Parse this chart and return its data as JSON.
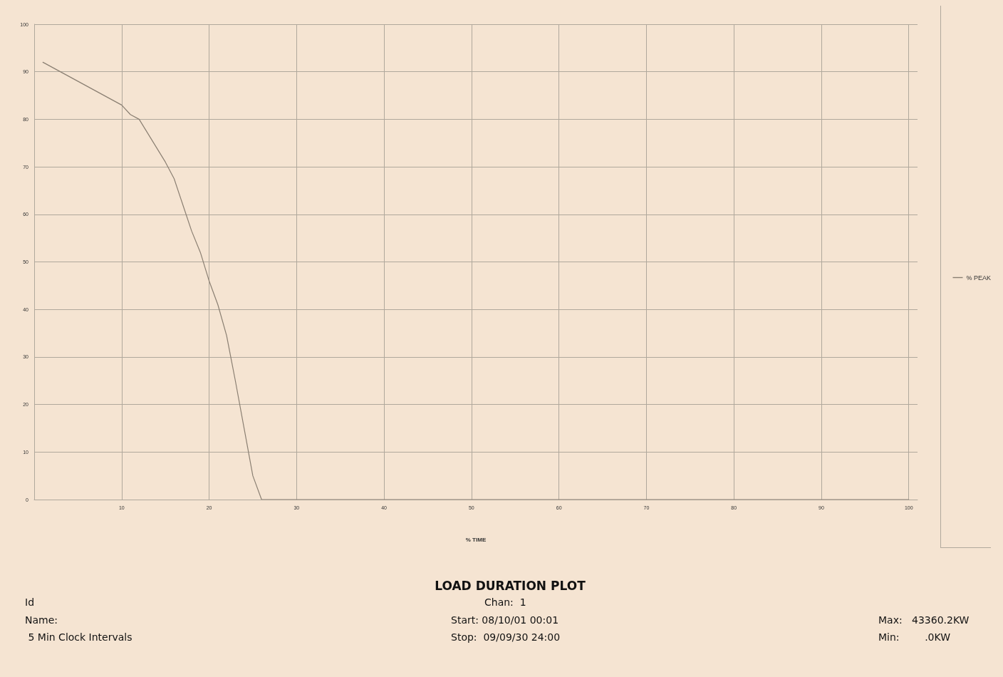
{
  "chart_data": {
    "type": "line",
    "title": "LOAD DURATION PLOT",
    "xlabel": "% TIME",
    "annotations": [
      "Id",
      "Name:",
      " 5 Min Clock Intervals",
      "Chan:  1",
      "Start: 08/10/01 00:01",
      "Stop:  09/09/30 24:00",
      "Max:   43360.2KW",
      "Min:        .0KW"
    ],
    "series": [
      {
        "name": "% PEAK",
        "color": "#8a7f72",
        "x": [
          1,
          10,
          11,
          12,
          15,
          16,
          17,
          18,
          19,
          20,
          21,
          22,
          23,
          24,
          25,
          26,
          100
        ],
        "values": [
          92,
          83,
          81,
          80,
          71,
          67.5,
          62,
          56.5,
          52,
          46,
          41,
          34.5,
          25,
          15,
          5,
          0,
          0
        ]
      }
    ],
    "xlim": [
      0,
      101
    ],
    "xticks": [
      10,
      20,
      30,
      40,
      50,
      60,
      70,
      80,
      90,
      100
    ],
    "ylim": [
      0,
      100
    ],
    "yticks": [
      0,
      10,
      20,
      30,
      40,
      50,
      60,
      70,
      80,
      90,
      100
    ],
    "grid": true,
    "legend": "right",
    "marker": "none",
    "line_style": "solid"
  }
}
